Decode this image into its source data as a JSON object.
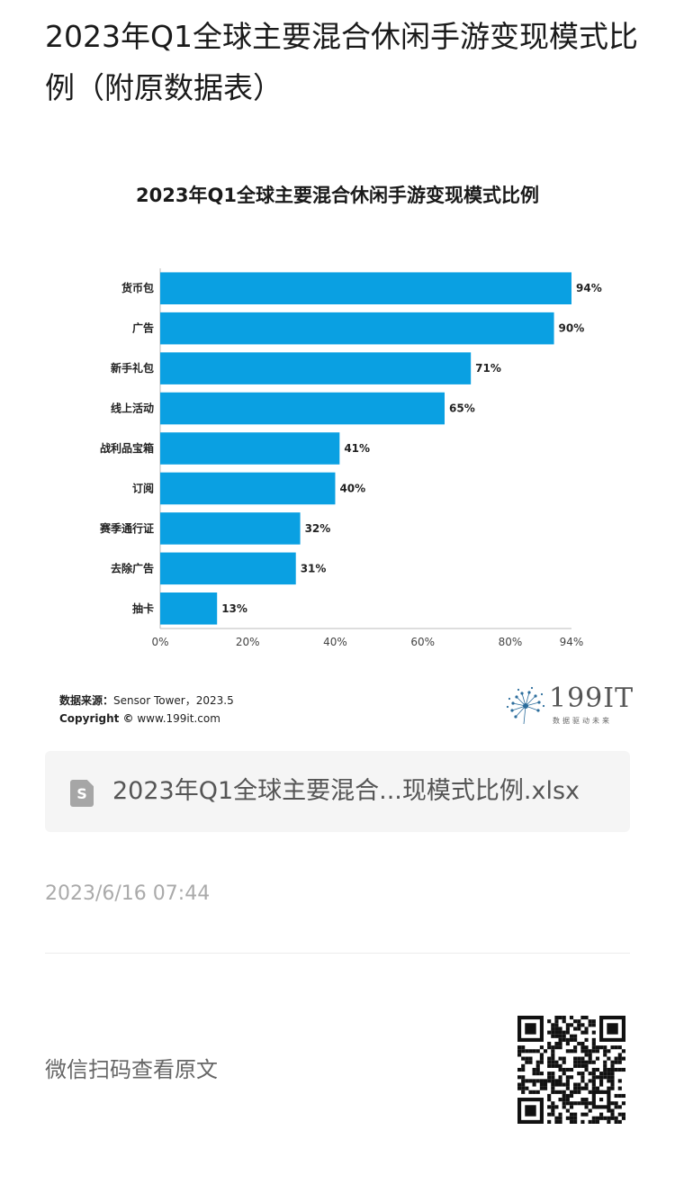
{
  "article": {
    "title": "2023年Q1全球主要混合休闲手游变现模式比例（附原数据表）"
  },
  "chart_data": {
    "type": "bar",
    "orientation": "horizontal",
    "title": "2023年Q1全球主要混合休闲手游变现模式比例",
    "categories": [
      "货币包",
      "广告",
      "新手礼包",
      "线上活动",
      "战利品宝箱",
      "订阅",
      "赛季通行证",
      "去除广告",
      "抽卡"
    ],
    "values": [
      94,
      90,
      71,
      65,
      41,
      40,
      32,
      31,
      13
    ],
    "value_labels": [
      "94%",
      "90%",
      "71%",
      "65%",
      "41%",
      "40%",
      "32%",
      "31%",
      "13%"
    ],
    "x_ticks": [
      "0%",
      "20%",
      "40%",
      "60%",
      "80%",
      "94%"
    ],
    "x_tick_values": [
      0,
      20,
      40,
      60,
      80,
      94
    ],
    "xlim": [
      0,
      94
    ],
    "bar_color": "#0aa0e2",
    "grid": false
  },
  "chart_source": {
    "label": "数据来源：",
    "text": "Sensor Tower，2023.5",
    "copyright_label": "Copyright ©",
    "copyright_text": " www.199it.com"
  },
  "logo": {
    "text": "199IT",
    "subtitle": "数据驱动未来"
  },
  "attachment": {
    "icon": "spreadsheet-file-icon",
    "filename": "2023年Q1全球主要混合...现模式比例.xlsx"
  },
  "timestamp": "2023/6/16 07:44",
  "footer": {
    "scan_text": "微信扫码查看原文"
  }
}
